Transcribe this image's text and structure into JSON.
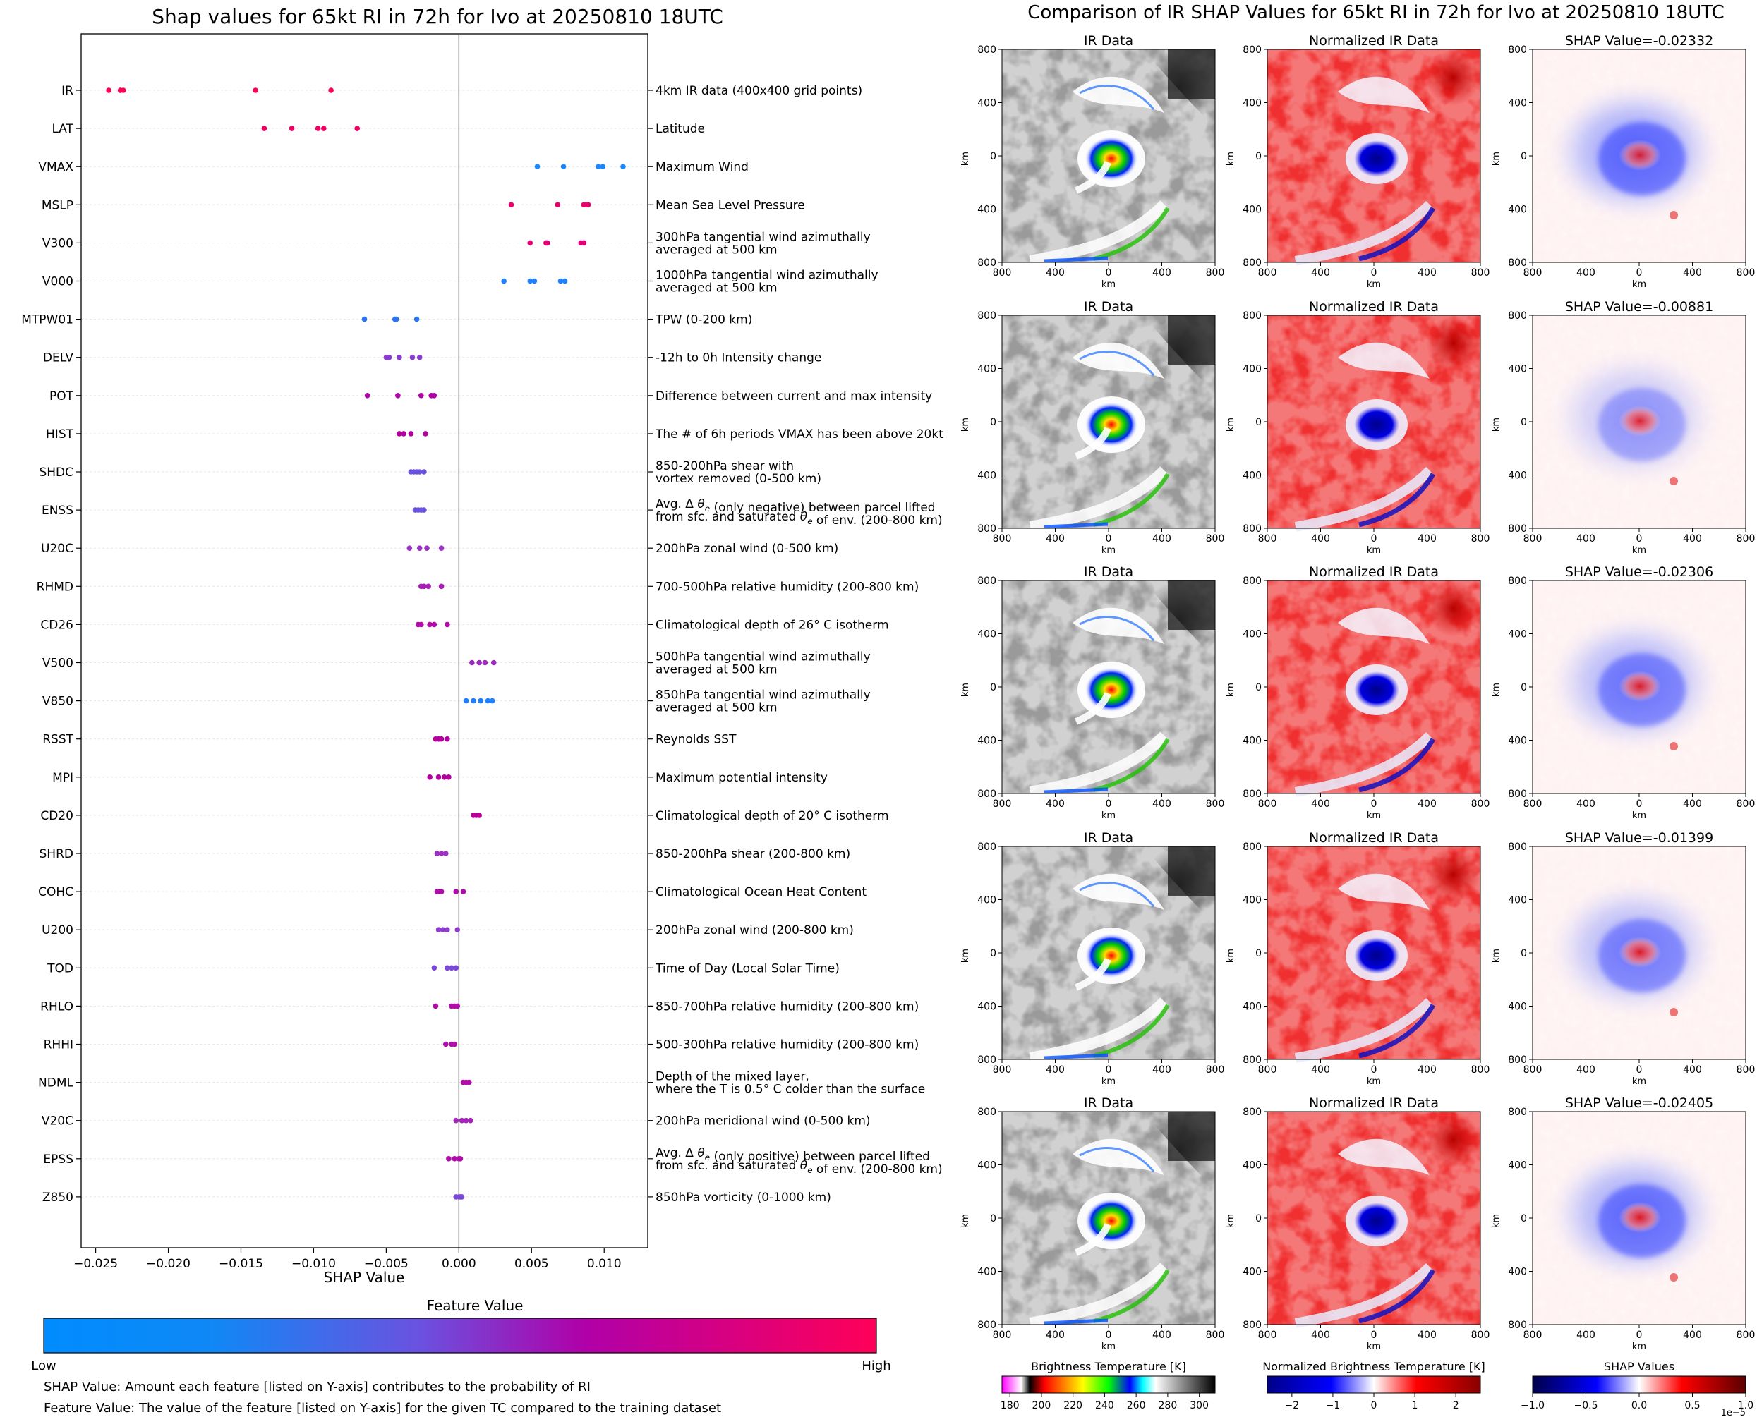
{
  "chart_data": [
    {
      "type": "scatter",
      "title": "Shap values for 65kt RI in 72h for Ivo at 20250810 18UTC",
      "xlabel": "SHAP Value",
      "xlim": [
        -0.026,
        0.013
      ],
      "xticks": [
        -0.025,
        -0.02,
        -0.015,
        -0.01,
        -0.005,
        0.0,
        0.005,
        0.01
      ],
      "xtick_labels": [
        "−0.025",
        "−0.020",
        "−0.015",
        "−0.010",
        "−0.005",
        "0.000",
        "0.005",
        "0.010"
      ],
      "features": [
        {
          "name": "IR",
          "description": [
            "4km IR data (400x400 grid points)"
          ],
          "values": [
            -0.0241,
            -0.0233,
            -0.0231,
            -0.014,
            -0.0088
          ],
          "color": "#ff0058"
        },
        {
          "name": "LAT",
          "description": [
            "Latitude"
          ],
          "values": [
            -0.0134,
            -0.0115,
            -0.0097,
            -0.0093,
            -0.007
          ],
          "color": "#f00062"
        },
        {
          "name": "VMAX",
          "description": [
            "Maximum Wind"
          ],
          "values": [
            0.0054,
            0.0072,
            0.0096,
            0.0099,
            0.0113
          ],
          "color": "#1a88ff"
        },
        {
          "name": "MSLP",
          "description": [
            "Mean Sea Level Pressure"
          ],
          "values": [
            0.0036,
            0.0068,
            0.0086,
            0.0088,
            0.0089
          ],
          "color": "#e8006c"
        },
        {
          "name": "V300",
          "description": [
            "300hPa tangential wind azimuthally",
            "averaged at 500 km"
          ],
          "values": [
            0.0049,
            0.006,
            0.0061,
            0.0084,
            0.0086
          ],
          "color": "#e40074"
        },
        {
          "name": "V000",
          "description": [
            "1000hPa tangential wind azimuthally",
            "averaged at 500 km"
          ],
          "values": [
            0.0031,
            0.0049,
            0.0052,
            0.007,
            0.0073
          ],
          "color": "#1e80ff"
        },
        {
          "name": "MTPW01",
          "description": [
            "TPW (0-200 km)"
          ],
          "values": [
            -0.0065,
            -0.0044,
            -0.0043,
            -0.0029
          ],
          "color": "#2a74f2"
        },
        {
          "name": "DELV",
          "description": [
            "-12h to 0h Intensity change"
          ],
          "values": [
            -0.005,
            -0.0048,
            -0.0041,
            -0.0032,
            -0.0027
          ],
          "color": "#8a3cd0"
        },
        {
          "name": "POT",
          "description": [
            "Difference between current and max intensity"
          ],
          "values": [
            -0.0063,
            -0.0042,
            -0.0026,
            -0.0019,
            -0.0017
          ],
          "color": "#b000a8"
        },
        {
          "name": "HIST",
          "description": [
            "The # of 6h periods VMAX has been above 20kt"
          ],
          "values": [
            -0.0041,
            -0.0038,
            -0.0033,
            -0.0023
          ],
          "color": "#b4009e"
        },
        {
          "name": "SHDC",
          "description": [
            "850-200hPa shear with",
            "vortex removed (0-500 km)"
          ],
          "values": [
            -0.0033,
            -0.0031,
            -0.0029,
            -0.0027,
            -0.0024
          ],
          "color": "#6a52de"
        },
        {
          "name": "ENSS",
          "description": [
            "Avg. Δ θe (only negative) between parcel lifted",
            "from sfc. and saturated θe of env. (200-800 km)"
          ],
          "values": [
            -0.003,
            -0.0028,
            -0.0026,
            -0.0024
          ],
          "color": "#6a54e0"
        },
        {
          "name": "U20C",
          "description": [
            "200hPa zonal wind (0-500 km)"
          ],
          "values": [
            -0.0034,
            -0.0027,
            -0.0022,
            -0.0012
          ],
          "color": "#9a36c4"
        },
        {
          "name": "RHMD",
          "description": [
            "700-500hPa relative humidity (200-800 km)"
          ],
          "values": [
            -0.0026,
            -0.0024,
            -0.0021,
            -0.0012
          ],
          "color": "#a81eb4"
        },
        {
          "name": "CD26",
          "description": [
            "Climatological depth of 26° C isotherm"
          ],
          "values": [
            -0.0028,
            -0.0026,
            -0.002,
            -0.0017,
            -0.0008
          ],
          "color": "#b00ca8"
        },
        {
          "name": "V500",
          "description": [
            "500hPa tangential wind azimuthally",
            "averaged at 500 km"
          ],
          "values": [
            0.0009,
            0.0014,
            0.0018,
            0.0024
          ],
          "color": "#9c2cc0"
        },
        {
          "name": "V850",
          "description": [
            "850hPa tangential wind azimuthally",
            "averaged at 500 km"
          ],
          "values": [
            0.0005,
            0.001,
            0.0015,
            0.002,
            0.0023
          ],
          "color": "#1e80ff"
        },
        {
          "name": "RSST",
          "description": [
            "Reynolds SST"
          ],
          "values": [
            -0.0016,
            -0.0014,
            -0.0012,
            -0.0008
          ],
          "color": "#b4009e"
        },
        {
          "name": "MPI",
          "description": [
            "Maximum potential intensity"
          ],
          "values": [
            -0.002,
            -0.0014,
            -0.001,
            -0.0007
          ],
          "color": "#b4009e"
        },
        {
          "name": "CD20",
          "description": [
            "Climatological depth of 20° C isotherm"
          ],
          "values": [
            0.001,
            0.0012,
            0.0014
          ],
          "color": "#b80098"
        },
        {
          "name": "SHRD",
          "description": [
            "850-200hPa shear (200-800 km)"
          ],
          "values": [
            -0.0015,
            -0.0012,
            -0.0009
          ],
          "color": "#9e30c0"
        },
        {
          "name": "COHC",
          "description": [
            "Climatological Ocean Heat Content"
          ],
          "values": [
            -0.0015,
            -0.0013,
            -0.0012,
            -0.0002,
            0.0003
          ],
          "color": "#b00ca8"
        },
        {
          "name": "U200",
          "description": [
            "200hPa zonal wind (200-800 km)"
          ],
          "values": [
            -0.0014,
            -0.0011,
            -0.0008,
            -0.0001
          ],
          "color": "#8c3ccc"
        },
        {
          "name": "TOD",
          "description": [
            "Time of Day (Local Solar Time)"
          ],
          "values": [
            -0.0017,
            -0.0008,
            -0.0005,
            -0.0002
          ],
          "color": "#7a48d8"
        },
        {
          "name": "RHLO",
          "description": [
            "850-700hPa relative humidity (200-800 km)"
          ],
          "values": [
            -0.0016,
            -0.0005,
            -0.0003,
            -0.0001
          ],
          "color": "#b00ca8"
        },
        {
          "name": "RHHI",
          "description": [
            "500-300hPa relative humidity (200-800 km)"
          ],
          "values": [
            -0.0009,
            -0.0005,
            -0.0003
          ],
          "color": "#b00ca8"
        },
        {
          "name": "NDML",
          "description": [
            "Depth of the mixed layer,",
            "where the T is 0.5° C colder than the surface"
          ],
          "values": [
            0.0003,
            0.0005,
            0.0007
          ],
          "color": "#b00ca8"
        },
        {
          "name": "V20C",
          "description": [
            "200hPa meridional wind (0-500 km)"
          ],
          "values": [
            -0.0002,
            0.0002,
            0.0005,
            0.0008
          ],
          "color": "#a224b8"
        },
        {
          "name": "EPSS",
          "description": [
            "Avg. Δ θe (only positive) between parcel lifted",
            "from sfc. and saturated θe of env. (200-800 km)"
          ],
          "values": [
            -0.0007,
            -0.0003,
            0.0,
            0.0001
          ],
          "color": "#b00ca8"
        },
        {
          "name": "Z850",
          "description": [
            "850hPa vorticity (0-1000 km)"
          ],
          "values": [
            -0.0002,
            0.0,
            0.0001,
            0.0002
          ],
          "color": "#7a48d8"
        }
      ],
      "colorbar": {
        "title": "Feature Value",
        "low_label": "Low",
        "high_label": "High",
        "colors": [
          "#008cff",
          "#0f88f5",
          "#6a52e0",
          "#b000a8",
          "#ff0058"
        ]
      },
      "footnotes": [
        "SHAP Value: Amount each feature [listed on Y-axis] contributes to the probability of RI",
        "Feature Value: The value of the feature [listed on Y-axis] for the given TC compared to the training dataset"
      ]
    },
    {
      "type": "heatmap",
      "title": "Comparison of IR SHAP Values for 65kt RI in 72h for Ivo at 20250810 18UTC",
      "axis_label": "km",
      "xlim": [
        -800,
        800
      ],
      "ylim": [
        -800,
        800
      ],
      "tick_values": [
        -800,
        -400,
        0,
        400,
        800
      ],
      "tick_labels": [
        "800",
        "400",
        "0",
        "400",
        "800"
      ],
      "column_titles": [
        "IR Data",
        "Normalized IR Data"
      ],
      "shap_titles": [
        "SHAP Value=-0.02332",
        "SHAP Value=-0.00881",
        "SHAP Value=-0.02306",
        "SHAP Value=-0.01399",
        "SHAP Value=-0.02405"
      ],
      "colorbars": [
        {
          "title": "Brightness Temperature [K]",
          "ticks": [
            180,
            200,
            220,
            240,
            260,
            280,
            300
          ],
          "tick_labels": [
            "180",
            "200",
            "220",
            "240",
            "260",
            "280",
            "300"
          ],
          "range": [
            175,
            310
          ],
          "colors": [
            "#ff00ff",
            "#ffffff",
            "#000000",
            "#ff0000",
            "#ffff00",
            "#00ff00",
            "#0000ff",
            "#00ffff",
            "#ffffff",
            "#000000"
          ]
        },
        {
          "title": "Normalized Brightness Temperature [K]",
          "ticks": [
            -2,
            -1,
            0,
            1,
            2
          ],
          "tick_labels": [
            "−2",
            "−1",
            "0",
            "1",
            "2"
          ],
          "range": [
            -2.6,
            2.6
          ],
          "colors": [
            "#000088",
            "#0000ff",
            "#ffffff",
            "#ff0000",
            "#880000"
          ]
        },
        {
          "title": "SHAP Values",
          "ticks": [
            -1.0,
            -0.5,
            0.0,
            0.5,
            1.0
          ],
          "tick_labels": [
            "−1.0",
            "−0.5",
            "0.0",
            "0.5",
            "1.0"
          ],
          "range": [
            -1.0,
            1.0
          ],
          "exponent_label": "1e−5",
          "colors": [
            "#00004a",
            "#0000ff",
            "#ffffff",
            "#ff0000",
            "#5a0000"
          ]
        }
      ]
    }
  ]
}
